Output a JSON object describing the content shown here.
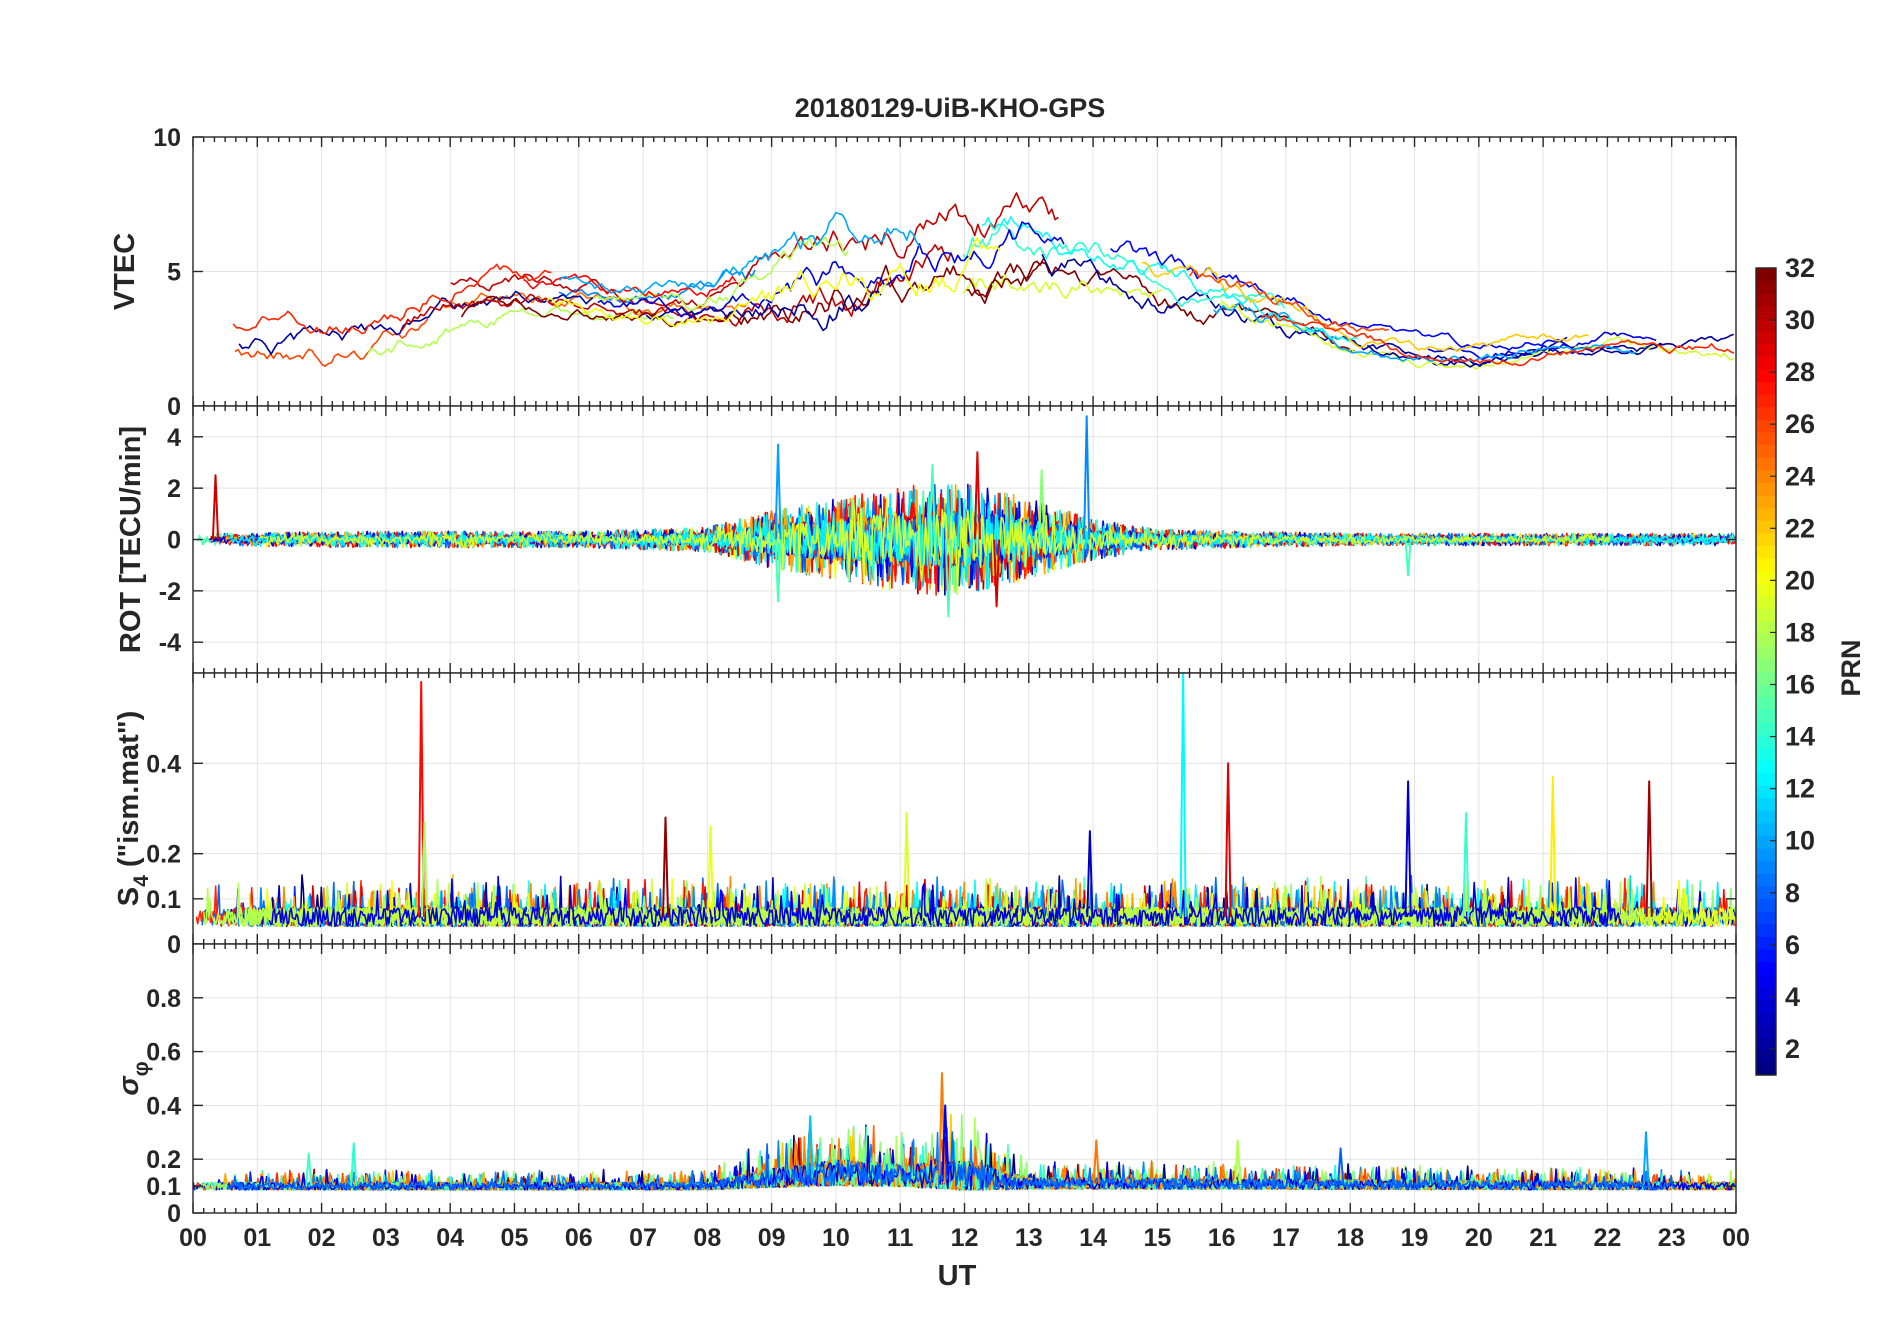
{
  "chart_data": {
    "type": "line",
    "title": "20180129-UiB-KHO-GPS",
    "xlabel": "UT",
    "x_ticks": [
      "00",
      "01",
      "02",
      "03",
      "04",
      "05",
      "06",
      "07",
      "08",
      "09",
      "10",
      "11",
      "12",
      "13",
      "14",
      "15",
      "16",
      "17",
      "18",
      "19",
      "20",
      "21",
      "22",
      "23",
      "00"
    ],
    "xlim_hours": [
      0,
      24
    ],
    "grid": true,
    "colorbar": {
      "label": "PRN",
      "range": [
        1,
        32
      ],
      "ticks": [
        "2",
        "4",
        "6",
        "8",
        "10",
        "12",
        "14",
        "16",
        "18",
        "20",
        "22",
        "24",
        "26",
        "28",
        "30",
        "32"
      ],
      "colormap": "jet",
      "placement": "right"
    },
    "panels": [
      {
        "id": "vtec",
        "ylabel": "VTEC",
        "ylim": [
          0,
          10
        ],
        "yticks": [
          "0",
          "5",
          "10"
        ],
        "ytick_values": [
          0,
          5,
          10
        ],
        "envelope": {
          "hours": [
            0,
            2,
            3,
            4,
            5,
            6,
            7,
            8,
            9,
            10,
            11,
            12,
            13,
            14,
            15,
            16,
            17,
            18,
            19,
            20,
            21,
            22,
            23,
            24
          ],
          "mean": [
            2.5,
            2.5,
            3.0,
            4.0,
            4.3,
            4.0,
            3.7,
            3.7,
            4.2,
            5.0,
            5.5,
            5.8,
            6.2,
            5.5,
            4.5,
            4.0,
            3.3,
            2.5,
            2.0,
            1.8,
            2.2,
            2.4,
            2.3,
            2.3
          ],
          "spread": [
            0.9,
            1.0,
            1.0,
            0.9,
            0.8,
            0.7,
            0.7,
            0.8,
            1.4,
            1.8,
            1.8,
            1.8,
            1.5,
            1.2,
            1.0,
            1.0,
            0.8,
            0.6,
            0.5,
            0.5,
            0.5,
            0.5,
            0.5,
            0.7
          ]
        }
      },
      {
        "id": "rot",
        "ylabel": "ROT [TECU/min]",
        "ylim": [
          -5.2,
          5.2
        ],
        "yticks": [
          "-4",
          "-2",
          "0",
          "2",
          "4"
        ],
        "ytick_values": [
          -4,
          -2,
          0,
          2,
          4
        ],
        "envelope": {
          "hours": [
            0,
            3,
            6,
            8,
            9,
            10,
            11,
            12,
            13,
            14,
            15,
            18,
            21,
            24
          ],
          "mean": [
            0,
            0,
            0,
            0,
            0,
            0,
            0,
            0,
            0,
            0,
            0,
            0,
            0,
            0
          ],
          "spread": [
            0.15,
            0.2,
            0.2,
            0.3,
            0.7,
            1.0,
            1.3,
            1.4,
            1.0,
            0.5,
            0.25,
            0.15,
            0.15,
            0.15
          ]
        },
        "spikes": [
          [
            0.35,
            2.5
          ],
          [
            9.1,
            3.7
          ],
          [
            9.1,
            -2.4
          ],
          [
            11.5,
            2.9
          ],
          [
            11.75,
            -3.0
          ],
          [
            12.2,
            3.4
          ],
          [
            12.5,
            -2.6
          ],
          [
            13.2,
            2.7
          ],
          [
            13.9,
            4.8
          ],
          [
            18.9,
            -1.4
          ]
        ]
      },
      {
        "id": "s4",
        "ylabel_main": "S",
        "ylabel_sub": "4",
        "ylabel_rest": " (\"ism.mat\")",
        "ylim": [
          0,
          0.6
        ],
        "yticks": [
          "0",
          "0.1",
          "0.2",
          "0.4"
        ],
        "ytick_values": [
          0,
          0.1,
          0.2,
          0.4
        ],
        "envelope": {
          "hours": [
            0,
            24
          ],
          "mean": [
            0.06,
            0.06
          ],
          "spread": [
            0.03,
            0.03
          ]
        },
        "spikes": [
          [
            3.55,
            0.58
          ],
          [
            3.6,
            0.27
          ],
          [
            7.35,
            0.28
          ],
          [
            8.05,
            0.26
          ],
          [
            11.1,
            0.29
          ],
          [
            13.95,
            0.25
          ],
          [
            15.4,
            0.6
          ],
          [
            16.1,
            0.4
          ],
          [
            18.9,
            0.36
          ],
          [
            19.8,
            0.29
          ],
          [
            21.15,
            0.37
          ],
          [
            22.65,
            0.36
          ]
        ]
      },
      {
        "id": "sigma_phi",
        "ylabel_main": "σ",
        "ylabel_sub": "φ",
        "ylim": [
          0,
          1.0
        ],
        "yticks": [
          "0",
          "0.1",
          "0.2",
          "0.4",
          "0.6",
          "0.8"
        ],
        "ytick_values": [
          0,
          0.1,
          0.2,
          0.4,
          0.6,
          0.8
        ],
        "envelope": {
          "hours": [
            0,
            8,
            9,
            10,
            11,
            12,
            13,
            24
          ],
          "mean": [
            0.1,
            0.1,
            0.13,
            0.15,
            0.14,
            0.14,
            0.11,
            0.1
          ],
          "spread": [
            0.02,
            0.02,
            0.05,
            0.07,
            0.06,
            0.08,
            0.03,
            0.02
          ]
        },
        "spikes": [
          [
            1.8,
            0.22
          ],
          [
            2.5,
            0.26
          ],
          [
            9.6,
            0.36
          ],
          [
            11.65,
            0.52
          ],
          [
            11.7,
            0.4
          ],
          [
            14.05,
            0.27
          ],
          [
            16.25,
            0.27
          ],
          [
            17.85,
            0.24
          ],
          [
            22.6,
            0.3
          ]
        ]
      }
    ]
  }
}
